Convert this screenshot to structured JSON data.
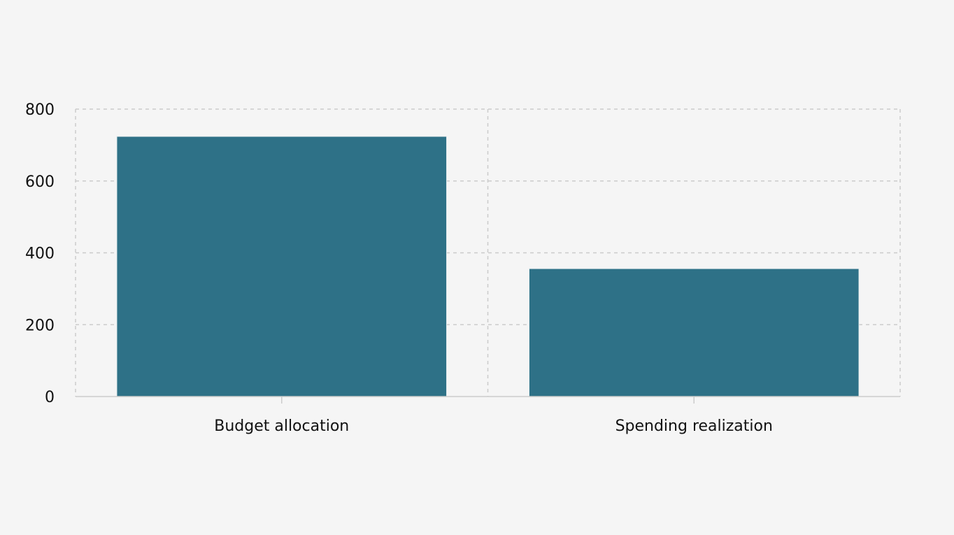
{
  "chart_data": {
    "type": "bar",
    "categories": [
      "Budget allocation",
      "Spending realization"
    ],
    "values": [
      724,
      356
    ],
    "title": "",
    "xlabel": "",
    "ylabel": "",
    "ylim": [
      0,
      800
    ],
    "yticks": [
      0,
      200,
      400,
      600,
      800
    ],
    "grid": true,
    "bar_color": "#2e7187",
    "background": "#f5f5f5"
  }
}
